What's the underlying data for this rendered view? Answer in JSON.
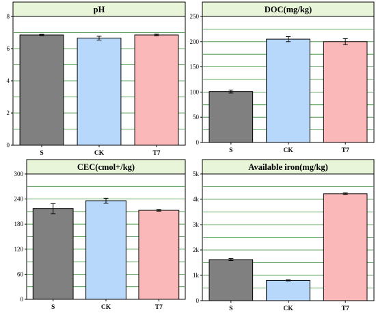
{
  "chart_data": [
    {
      "type": "bar",
      "title": "pH",
      "categories": [
        "S",
        "CK",
        "T7"
      ],
      "values": [
        6.85,
        6.65,
        6.85
      ],
      "errors": [
        0.04,
        0.12,
        0.05
      ],
      "ylim": [
        0,
        8
      ],
      "yticks": [
        0,
        2,
        4,
        6,
        8
      ],
      "ytick_labels": [
        "0",
        "2",
        "4",
        "6",
        "8"
      ],
      "grid": true
    },
    {
      "type": "bar",
      "title": "DOC(mg/kg)",
      "categories": [
        "S",
        "CK",
        "T7"
      ],
      "values": [
        101,
        205,
        200
      ],
      "errors": [
        3,
        5,
        6
      ],
      "ylim": [
        0,
        250
      ],
      "yticks": [
        0,
        50,
        100,
        150,
        200,
        250
      ],
      "ytick_labels": [
        "0",
        "50",
        "100",
        "150",
        "200",
        "250"
      ],
      "grid": true
    },
    {
      "type": "bar",
      "title": "CEC(cmol+/kg)",
      "categories": [
        "S",
        "CK",
        "T7"
      ],
      "values": [
        217,
        236,
        213
      ],
      "errors": [
        12,
        6,
        2
      ],
      "ylim": [
        0,
        300
      ],
      "yticks": [
        0,
        60,
        120,
        180,
        240,
        300
      ],
      "ytick_labels": [
        "0",
        "60",
        "120",
        "180",
        "240",
        "300"
      ],
      "grid": true
    },
    {
      "type": "bar",
      "title": "Available iron(mg/kg)",
      "categories": [
        "S",
        "CK",
        "T7"
      ],
      "values": [
        1620,
        800,
        4220
      ],
      "errors": [
        40,
        20,
        30
      ],
      "ylim": [
        0,
        5000
      ],
      "yticks": [
        0,
        1000,
        2000,
        3000,
        4000,
        5000
      ],
      "ytick_labels": [
        "0",
        "1k",
        "2k",
        "3k",
        "4k",
        "5k"
      ],
      "grid": true
    }
  ],
  "colors": {
    "bar_fills": [
      "#808080",
      "#b7d8fb",
      "#fbb8b8"
    ],
    "title_bar": "#e8f5d9",
    "gridline": "#2e8b2e",
    "axis": "#000000"
  }
}
